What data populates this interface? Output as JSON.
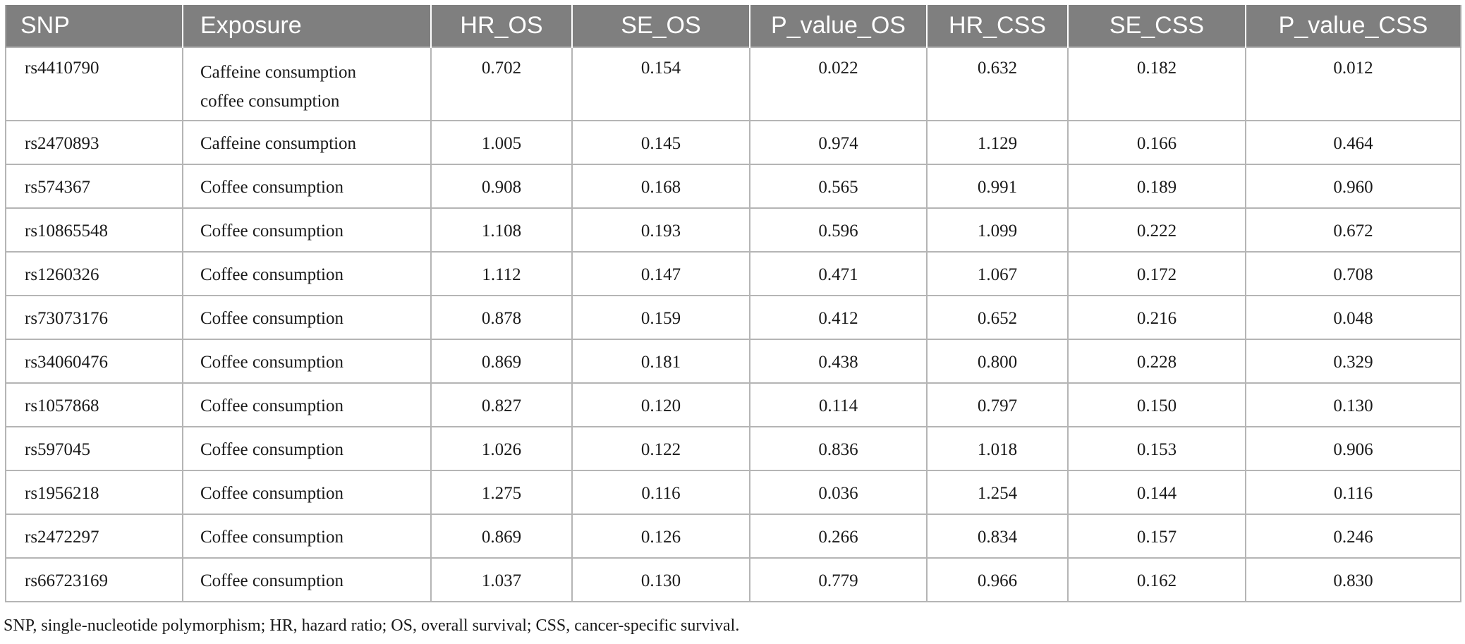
{
  "table": {
    "headers": [
      "SNP",
      "Exposure",
      "HR_OS",
      "SE_OS",
      "P_value_OS",
      "HR_CSS",
      "SE_CSS",
      "P_value_CSS"
    ],
    "rows": [
      {
        "snp": "rs4410790",
        "exposure_line1": "Caffeine consumption",
        "exposure_line2": "coffee consumption",
        "hr_os": "0.702",
        "se_os": "0.154",
        "p_os": "0.022",
        "hr_css": "0.632",
        "se_css": "0.182",
        "p_css": "0.012"
      },
      {
        "snp": "rs2470893",
        "exposure_line1": "Caffeine consumption",
        "hr_os": "1.005",
        "se_os": "0.145",
        "p_os": "0.974",
        "hr_css": "1.129",
        "se_css": "0.166",
        "p_css": "0.464"
      },
      {
        "snp": "rs574367",
        "exposure_line1": "Coffee consumption",
        "hr_os": "0.908",
        "se_os": "0.168",
        "p_os": "0.565",
        "hr_css": "0.991",
        "se_css": "0.189",
        "p_css": "0.960"
      },
      {
        "snp": "rs10865548",
        "exposure_line1": "Coffee consumption",
        "hr_os": "1.108",
        "se_os": "0.193",
        "p_os": "0.596",
        "hr_css": "1.099",
        "se_css": "0.222",
        "p_css": "0.672"
      },
      {
        "snp": "rs1260326",
        "exposure_line1": "Coffee consumption",
        "hr_os": "1.112",
        "se_os": "0.147",
        "p_os": "0.471",
        "hr_css": "1.067",
        "se_css": "0.172",
        "p_css": "0.708"
      },
      {
        "snp": "rs73073176",
        "exposure_line1": "Coffee consumption",
        "hr_os": "0.878",
        "se_os": "0.159",
        "p_os": "0.412",
        "hr_css": "0.652",
        "se_css": "0.216",
        "p_css": "0.048"
      },
      {
        "snp": "rs34060476",
        "exposure_line1": "Coffee consumption",
        "hr_os": "0.869",
        "se_os": "0.181",
        "p_os": "0.438",
        "hr_css": "0.800",
        "se_css": "0.228",
        "p_css": "0.329"
      },
      {
        "snp": "rs1057868",
        "exposure_line1": "Coffee consumption",
        "hr_os": "0.827",
        "se_os": "0.120",
        "p_os": "0.114",
        "hr_css": "0.797",
        "se_css": "0.150",
        "p_css": "0.130"
      },
      {
        "snp": "rs597045",
        "exposure_line1": "Coffee consumption",
        "hr_os": "1.026",
        "se_os": "0.122",
        "p_os": "0.836",
        "hr_css": "1.018",
        "se_css": "0.153",
        "p_css": "0.906"
      },
      {
        "snp": "rs1956218",
        "exposure_line1": "Coffee consumption",
        "hr_os": "1.275",
        "se_os": "0.116",
        "p_os": "0.036",
        "hr_css": "1.254",
        "se_css": "0.144",
        "p_css": "0.116"
      },
      {
        "snp": "rs2472297",
        "exposure_line1": "Coffee consumption",
        "hr_os": "0.869",
        "se_os": "0.126",
        "p_os": "0.266",
        "hr_css": "0.834",
        "se_css": "0.157",
        "p_css": "0.246"
      },
      {
        "snp": "rs66723169",
        "exposure_line1": "Coffee consumption",
        "hr_os": "1.037",
        "se_os": "0.130",
        "p_os": "0.779",
        "hr_css": "0.966",
        "se_css": "0.162",
        "p_css": "0.830"
      }
    ]
  },
  "footnote": "SNP, single-nucleotide polymorphism; HR, hazard ratio; OS, overall survival; CSS, cancer-specific survival.",
  "colors": {
    "header_bg": "#7f7f7f",
    "header_text": "#ffffff",
    "grid": "#b5b5b5",
    "body_text": "#1a1a1a"
  }
}
